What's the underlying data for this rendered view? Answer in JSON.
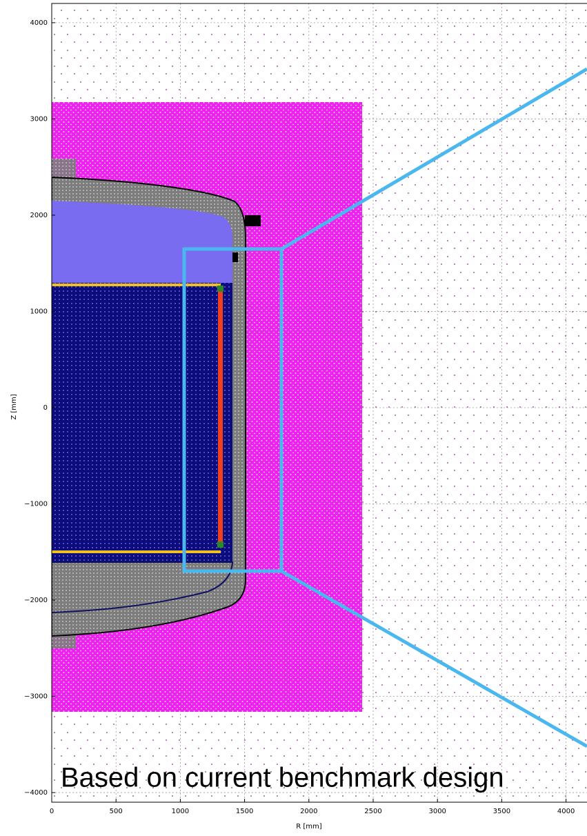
{
  "chart_data": {
    "type": "scatter",
    "annotation": "Based on current benchmark design",
    "xlabel": "R [mm]",
    "ylabel": "Z [mm]",
    "xlim": [
      0,
      4200
    ],
    "ylim": [
      -4100,
      4200
    ],
    "xticks": [
      0,
      500,
      1000,
      1500,
      2000,
      2500,
      3000,
      3500,
      4000
    ],
    "yticks": [
      {
        "value": -4000,
        "label": "−4000"
      },
      {
        "value": -3000,
        "label": "−3000"
      },
      {
        "value": -2000,
        "label": "−2000"
      },
      {
        "value": -1000,
        "label": "−1000"
      },
      0,
      1000,
      2000,
      3000,
      4000
    ],
    "grid": true
  }
}
